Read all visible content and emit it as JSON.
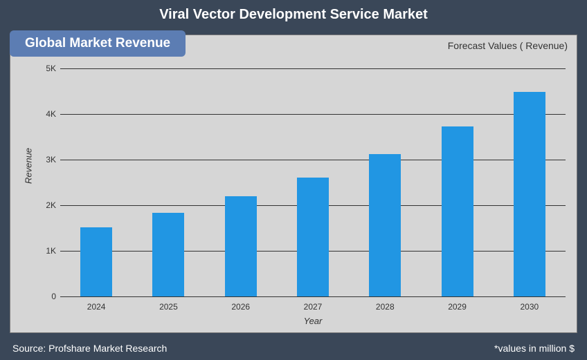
{
  "title": "Viral Vector Development Service Market",
  "badge": "Global Market Revenue",
  "forecast_label": "Forecast Values ( Revenue)",
  "legend_label": "Revenue",
  "footer_left": "Source: Profshare Market Research",
  "footer_right": "*values in million $",
  "chart": {
    "type": "bar",
    "categories": [
      "2024",
      "2025",
      "2026",
      "2027",
      "2028",
      "2029",
      "2030"
    ],
    "values": [
      1520,
      1830,
      2200,
      2600,
      3120,
      3720,
      4480
    ],
    "bar_color": "#2196e3",
    "background_color": "#d6d6d6",
    "panel_background": "#3a4758",
    "grid_color": "#333333",
    "ylabel": "Revenue",
    "xlabel": "Year",
    "ylim": [
      0,
      5000
    ],
    "ytick_step": 1000,
    "ytick_labels": [
      "0",
      "1K",
      "2K",
      "3K",
      "4K",
      "5K"
    ],
    "bar_width": 0.44,
    "title_fontsize": 20,
    "label_fontsize": 13,
    "tick_fontsize": 12,
    "badge_bg": "#5c7db3",
    "badge_color": "#ffffff"
  }
}
